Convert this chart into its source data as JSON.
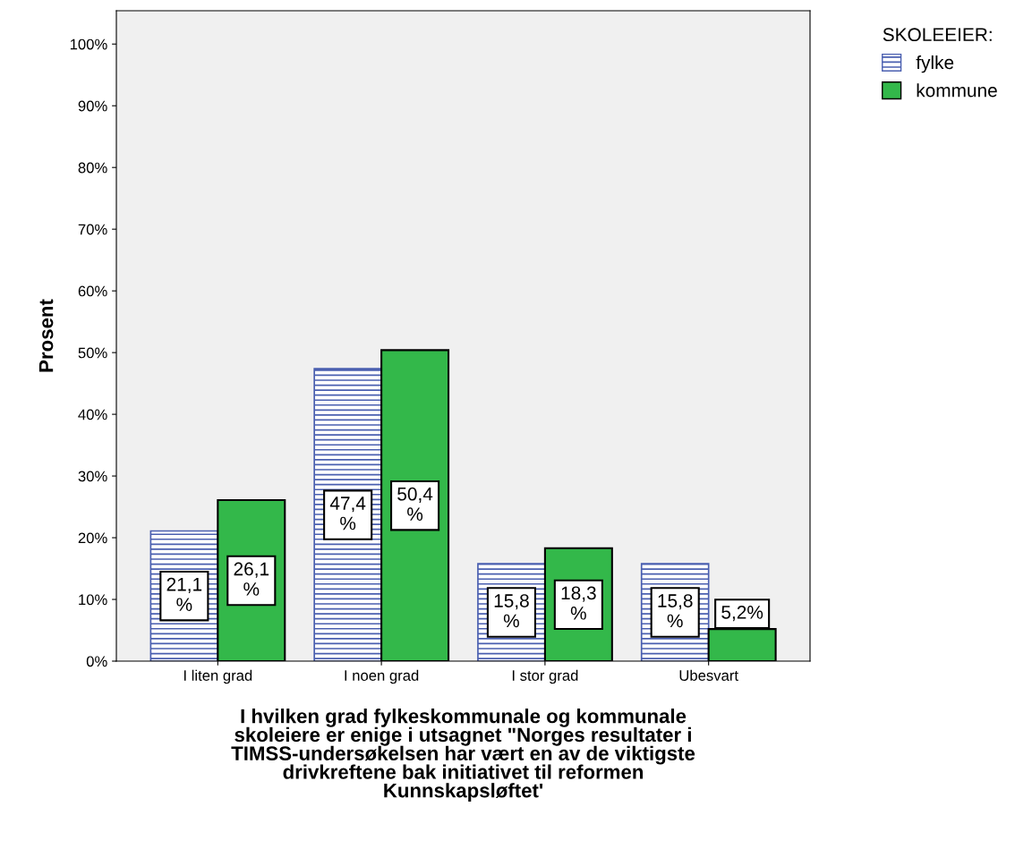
{
  "chart_data": {
    "type": "bar",
    "xlabel": "I hvilken grad fylkeskommunale og kommunale\nskoleiere er enige i utsagnet \"Norges resultater i\nTIMSS-undersøkelsen har vært en av de viktigste\ndrivkreftene bak initiativet til reformen\nKunnskapsløftet'",
    "ylabel": "Prosent",
    "legend_title": "SKOLEEIER:",
    "categories": [
      "I liten grad",
      "I noen grad",
      "I stor grad",
      "Ubesvart"
    ],
    "series": [
      {
        "name": "fylke",
        "color": "#4a5fb0",
        "values": [
          21.1,
          47.4,
          15.8,
          15.8
        ],
        "value_labels": [
          "21,1\n%",
          "47,4\n%",
          "15,8\n%",
          "15,8\n%"
        ]
      },
      {
        "name": "kommune",
        "color": "#33b84a",
        "values": [
          26.1,
          50.4,
          18.3,
          5.2
        ],
        "value_labels": [
          "26,1\n%",
          "50,4\n%",
          "18,3\n%",
          "5,2%"
        ]
      }
    ],
    "ylim": [
      0,
      105.4
    ],
    "yticks": [
      {
        "value": 0,
        "label": "0%"
      },
      {
        "value": 10,
        "label": "10%"
      },
      {
        "value": 20,
        "label": "20%"
      },
      {
        "value": 30,
        "label": "30%"
      },
      {
        "value": 40,
        "label": "40%"
      },
      {
        "value": 50,
        "label": "50%"
      },
      {
        "value": 60,
        "label": "60%"
      },
      {
        "value": 70,
        "label": "70%"
      },
      {
        "value": 80,
        "label": "80%"
      },
      {
        "value": 90,
        "label": "90%"
      },
      {
        "value": 100,
        "label": "100%"
      }
    ],
    "grid": false,
    "legend": "top right"
  }
}
